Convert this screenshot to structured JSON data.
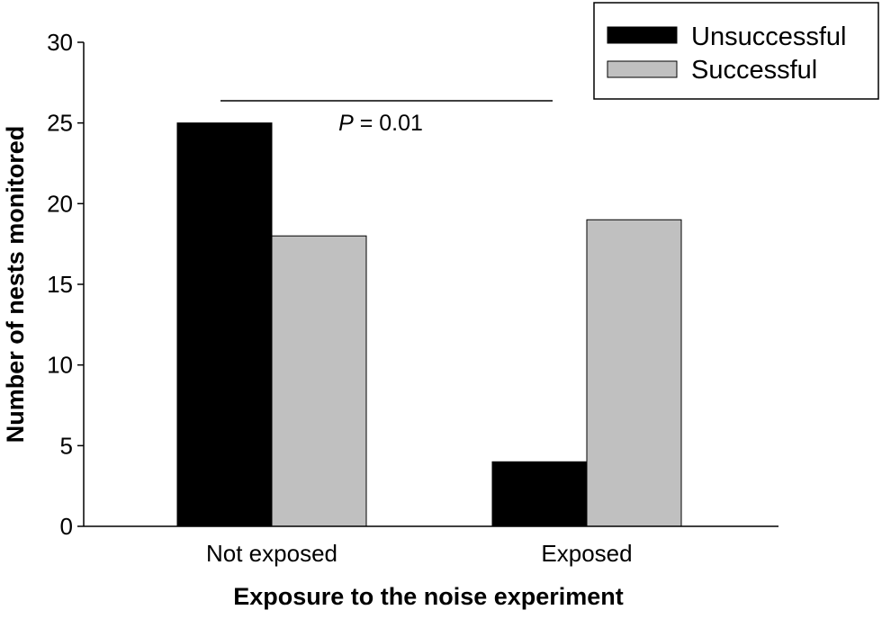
{
  "chart_data": {
    "type": "bar",
    "title": "",
    "xlabel": "Exposure to the noise experiment",
    "ylabel": "Number of nests monitored",
    "categories": [
      "Not exposed",
      "Exposed"
    ],
    "series": [
      {
        "name": "Unsuccessful",
        "values": [
          25,
          4
        ],
        "color": "#000000"
      },
      {
        "name": "Successful",
        "values": [
          18,
          19
        ],
        "color": "#c0c0c0"
      }
    ],
    "ylim": [
      0,
      30
    ],
    "yticks": [
      "0",
      "5",
      "10",
      "15",
      "20",
      "25",
      "30"
    ],
    "grid": false,
    "legend": "top-right",
    "annotation": {
      "italic": "P",
      "text": " = 0.01"
    }
  }
}
